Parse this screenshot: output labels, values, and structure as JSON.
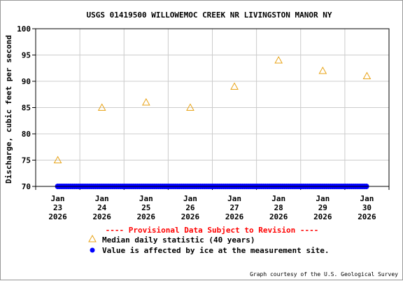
{
  "chart_data": {
    "type": "scatter",
    "title": "USGS 01419500 WILLOWEMOC CREEK NR LIVINGSTON MANOR NY",
    "ylabel": "Discharge, cubic feet per second",
    "xlabel": "",
    "ylim": [
      70,
      100
    ],
    "yticks": [
      70,
      75,
      80,
      85,
      90,
      95,
      100
    ],
    "y_tick_labels": [
      "70",
      "75",
      "80",
      "85",
      "90",
      "95",
      "100"
    ],
    "grid": true,
    "x_categories": [
      [
        "Jan",
        "23",
        "2026"
      ],
      [
        "Jan",
        "24",
        "2026"
      ],
      [
        "Jan",
        "25",
        "2026"
      ],
      [
        "Jan",
        "26",
        "2026"
      ],
      [
        "Jan",
        "27",
        "2026"
      ],
      [
        "Jan",
        "28",
        "2026"
      ],
      [
        "Jan",
        "29",
        "2026"
      ],
      [
        "Jan",
        "30",
        "2026"
      ]
    ],
    "series": [
      {
        "name": "Median daily statistic (40 years)",
        "marker": "triangle-open",
        "color": "#e8a317",
        "values": [
          75,
          85,
          86,
          85,
          89,
          94,
          92,
          91
        ]
      },
      {
        "name": "Value is affected by ice at the measurement site.",
        "marker": "dot",
        "color": "#0000ff",
        "x_range": [
          "Jan 23 2026",
          "Jan 30 2026"
        ],
        "y_value": 70
      }
    ],
    "notice": "---- Provisional Data Subject to Revision ----",
    "notice_color": "#ff0000",
    "credit": "Graph courtesy of the U.S. Geological Survey"
  }
}
